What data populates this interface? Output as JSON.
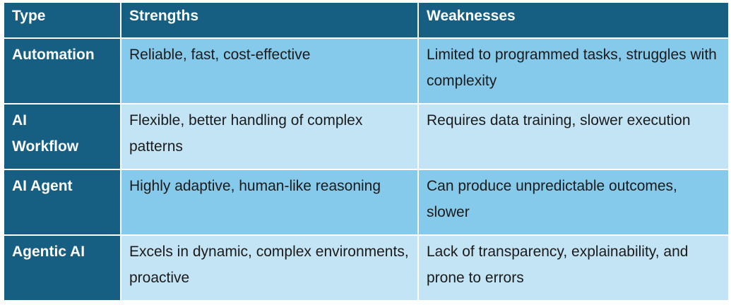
{
  "table": {
    "header": [
      "Type",
      "Strengths",
      "Weaknesses"
    ],
    "rows": [
      [
        "Automation",
        "Reliable, fast, cost-effective",
        "Limited to programmed tasks, struggles with complexity"
      ],
      [
        "AI Workflow",
        "Flexible, better handling of complex patterns",
        "Requires data training, slower execution"
      ],
      [
        "AI Agent",
        "Highly adaptive, human-like reasoning",
        "Can produce unpredictable outcomes, slower"
      ],
      [
        "Agentic AI",
        "Excels in dynamic, complex environments, proactive",
        "Lack of transparency, explainability, and prone to errors"
      ]
    ]
  }
}
